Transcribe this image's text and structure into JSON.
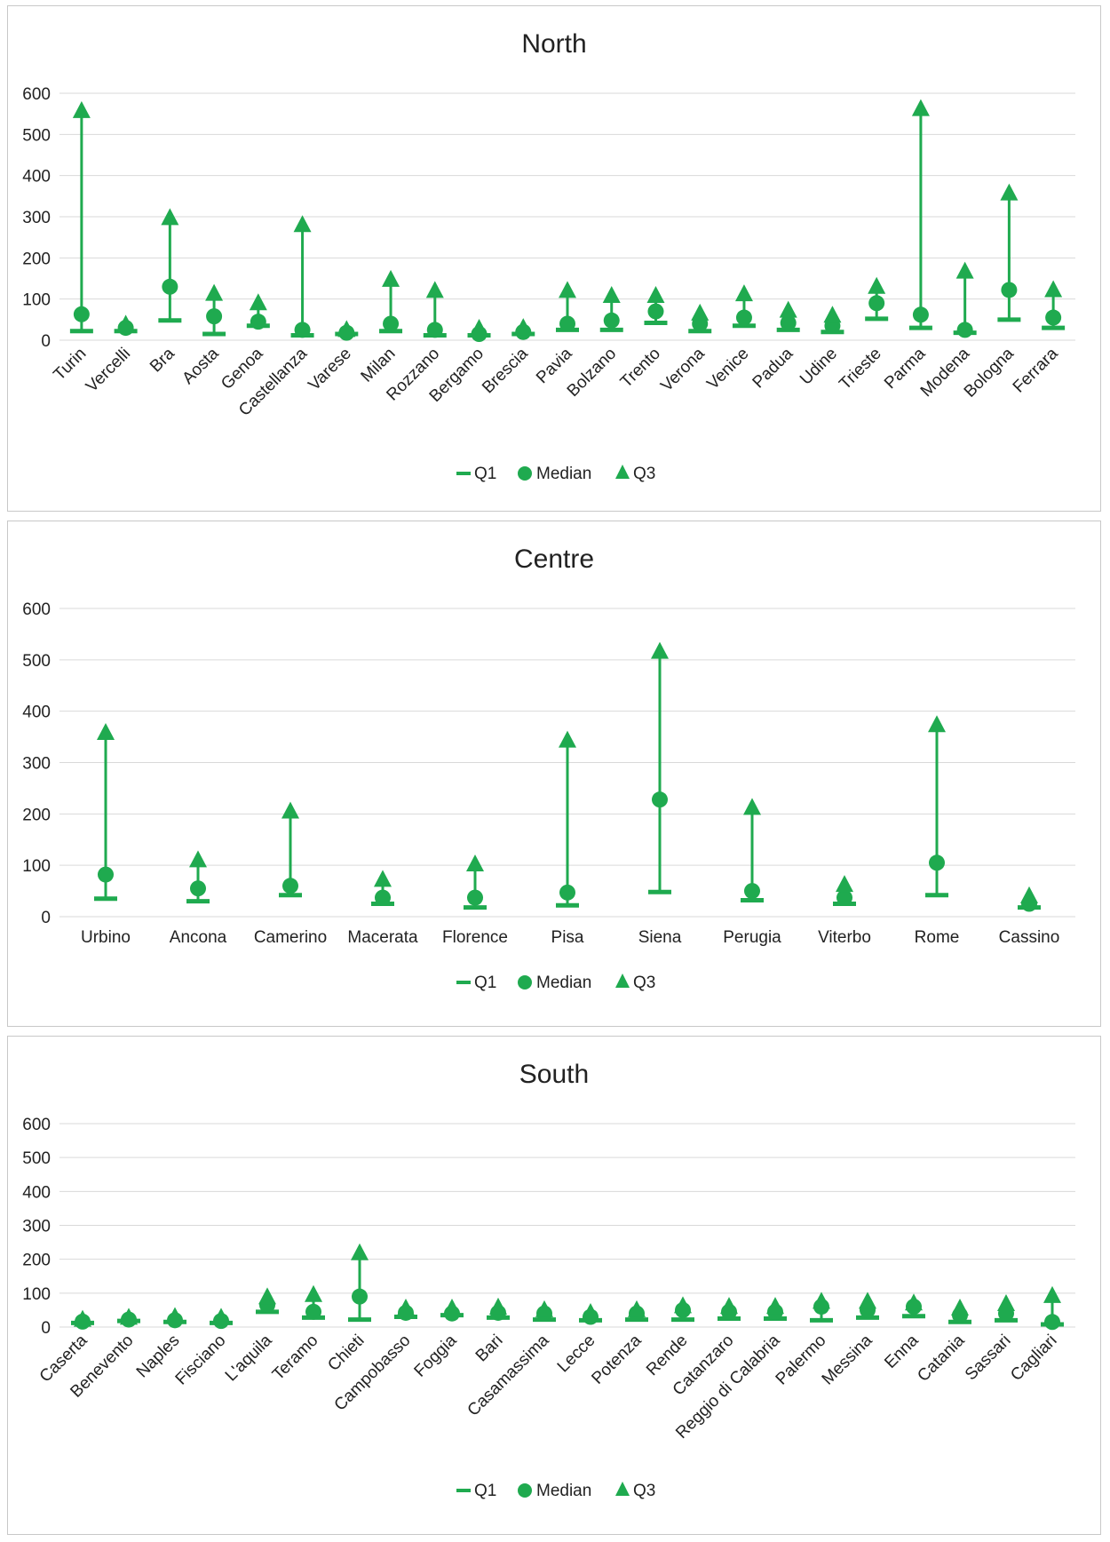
{
  "colors": {
    "series": "#1faa4f",
    "grid": "#d9d9d9",
    "axis_text": "#222222"
  },
  "legend": {
    "q1": "Q1",
    "median": "Median",
    "q3": "Q3"
  },
  "chart_data": [
    {
      "type": "scatter",
      "title": "North",
      "ylim": [
        0,
        600
      ],
      "yticks": [
        "0",
        "100",
        "200",
        "300",
        "400",
        "500",
        "600"
      ],
      "grid": true,
      "legend_position": "bottom",
      "rotated_labels": true,
      "categories": [
        "Turin",
        "Vercelli",
        "Bra",
        "Aosta",
        "Genoa",
        "Castellanza",
        "Varese",
        "Milan",
        "Rozzano",
        "Bergamo",
        "Brescia",
        "Pavia",
        "Bolzano",
        "Trento",
        "Verona",
        "Venice",
        "Padua",
        "Udine",
        "Trieste",
        "Parma",
        "Modena",
        "Bologna",
        "Ferrara"
      ],
      "series": [
        {
          "name": "Q1",
          "marker": "dash",
          "values": [
            22,
            22,
            48,
            15,
            35,
            12,
            15,
            22,
            12,
            12,
            15,
            25,
            25,
            42,
            22,
            35,
            25,
            20,
            52,
            30,
            18,
            50,
            30
          ]
        },
        {
          "name": "Median",
          "marker": "circle",
          "values": [
            63,
            30,
            130,
            58,
            45,
            25,
            18,
            40,
            25,
            15,
            20,
            40,
            48,
            70,
            40,
            55,
            42,
            35,
            90,
            62,
            25,
            122,
            55
          ]
        },
        {
          "name": "Q3",
          "marker": "triangle",
          "values": [
            557,
            38,
            297,
            113,
            90,
            280,
            25,
            147,
            120,
            28,
            30,
            120,
            108,
            108,
            65,
            112,
            72,
            60,
            130,
            562,
            167,
            357,
            122
          ]
        }
      ]
    },
    {
      "type": "scatter",
      "title": "Centre",
      "ylim": [
        0,
        600
      ],
      "yticks": [
        "0",
        "100",
        "200",
        "300",
        "400",
        "500",
        "600"
      ],
      "grid": true,
      "legend_position": "bottom",
      "rotated_labels": false,
      "categories": [
        "Urbino",
        "Ancona",
        "Camerino",
        "Macerata",
        "Florence",
        "Pisa",
        "Siena",
        "Perugia",
        "Viterbo",
        "Rome",
        "Cassino"
      ],
      "series": [
        {
          "name": "Q1",
          "marker": "dash",
          "values": [
            35,
            30,
            42,
            25,
            18,
            22,
            48,
            32,
            25,
            42,
            18
          ]
        },
        {
          "name": "Median",
          "marker": "circle",
          "values": [
            82,
            55,
            60,
            37,
            37,
            47,
            228,
            50,
            37,
            105,
            25
          ]
        },
        {
          "name": "Q3",
          "marker": "triangle",
          "values": [
            358,
            110,
            205,
            72,
            102,
            343,
            516,
            212,
            62,
            373,
            40
          ]
        }
      ]
    },
    {
      "type": "scatter",
      "title": "South",
      "ylim": [
        0,
        600
      ],
      "yticks": [
        "0",
        "100",
        "200",
        "300",
        "400",
        "500",
        "600"
      ],
      "grid": true,
      "legend_position": "bottom",
      "rotated_labels": true,
      "categories": [
        "Caserta",
        "Benevento",
        "Naples",
        "Fisciano",
        "L'aquila",
        "Teramo",
        "Chieti",
        "Campobasso",
        "Foggia",
        "Bari",
        "Casamassima",
        "Lecce",
        "Potenza",
        "Rende",
        "Catanzaro",
        "Reggio di Calabria",
        "Palermo",
        "Messina",
        "Enna",
        "Catania",
        "Sassari",
        "Cagliari"
      ],
      "series": [
        {
          "name": "Q1",
          "marker": "dash",
          "values": [
            12,
            18,
            15,
            12,
            45,
            28,
            22,
            30,
            35,
            28,
            22,
            20,
            22,
            22,
            25,
            25,
            20,
            28,
            32,
            15,
            20,
            8
          ]
        },
        {
          "name": "Median",
          "marker": "circle",
          "values": [
            16,
            22,
            20,
            18,
            65,
            45,
            90,
            42,
            40,
            42,
            40,
            30,
            40,
            50,
            45,
            45,
            60,
            50,
            60,
            35,
            40,
            15
          ]
        },
        {
          "name": "Q3",
          "marker": "triangle",
          "values": [
            22,
            28,
            30,
            28,
            88,
            95,
            218,
            55,
            55,
            58,
            50,
            42,
            50,
            62,
            60,
            60,
            75,
            75,
            70,
            55,
            68,
            92
          ]
        }
      ]
    }
  ]
}
